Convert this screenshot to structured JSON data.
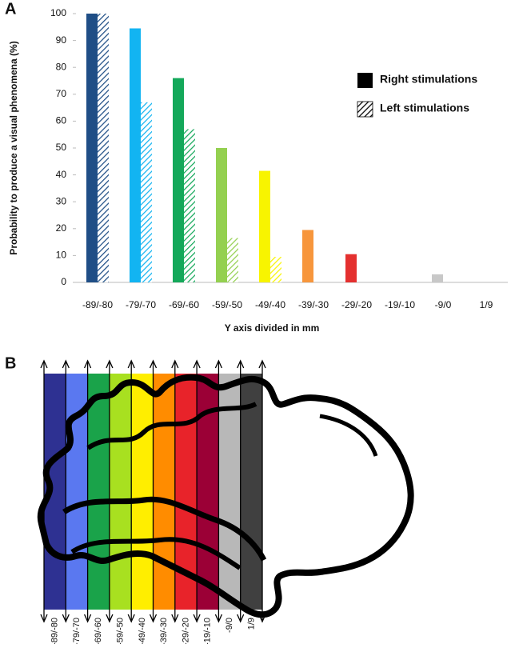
{
  "panel_labels": [
    "A",
    "B"
  ],
  "chart_data": {
    "type": "bar",
    "y_label": "Probability to produce a visual phenomena (%)",
    "x_label": "Y axis divided in mm",
    "categories": [
      "-89/-80",
      "-79/-70",
      "-69/-60",
      "-59/-50",
      "-49/-40",
      "-39/-30",
      "-29/-20",
      "-19/-10",
      "-9/0",
      "1/9"
    ],
    "colors": [
      "#1f4e86",
      "#12b4f2",
      "#14a85a",
      "#94d050",
      "#f8f400",
      "#f7963c",
      "#e4302f",
      "#c00000",
      "#c8c8c8",
      "#909090"
    ],
    "series": [
      {
        "name": "Right stimulations",
        "hatch": false,
        "values": [
          100,
          94.5,
          76,
          50,
          41.5,
          19.5,
          10.5,
          0,
          3,
          0
        ]
      },
      {
        "name": "Left stimulations",
        "hatch": true,
        "values": [
          100,
          67,
          57,
          16.5,
          9.5,
          0,
          0,
          0,
          0,
          0
        ]
      }
    ],
    "ylim": [
      0,
      100
    ],
    "yticks": [
      0,
      10,
      20,
      30,
      40,
      50,
      60,
      70,
      80,
      90,
      100
    ]
  },
  "diagram": {
    "labels": [
      "-89/-80",
      "-79/-70",
      "-69/-60",
      "-59/-50",
      "-49/-40",
      "-39/-30",
      "-29/-20",
      "-19/-10",
      "-9/0",
      "1/9"
    ],
    "colors": [
      "#2e3192",
      "#5a78f0",
      "#1aa34a",
      "#a8e020",
      "#ffee00",
      "#ff8c00",
      "#e8232a",
      "#9b0036",
      "#b8b8b8",
      "#404040"
    ]
  }
}
